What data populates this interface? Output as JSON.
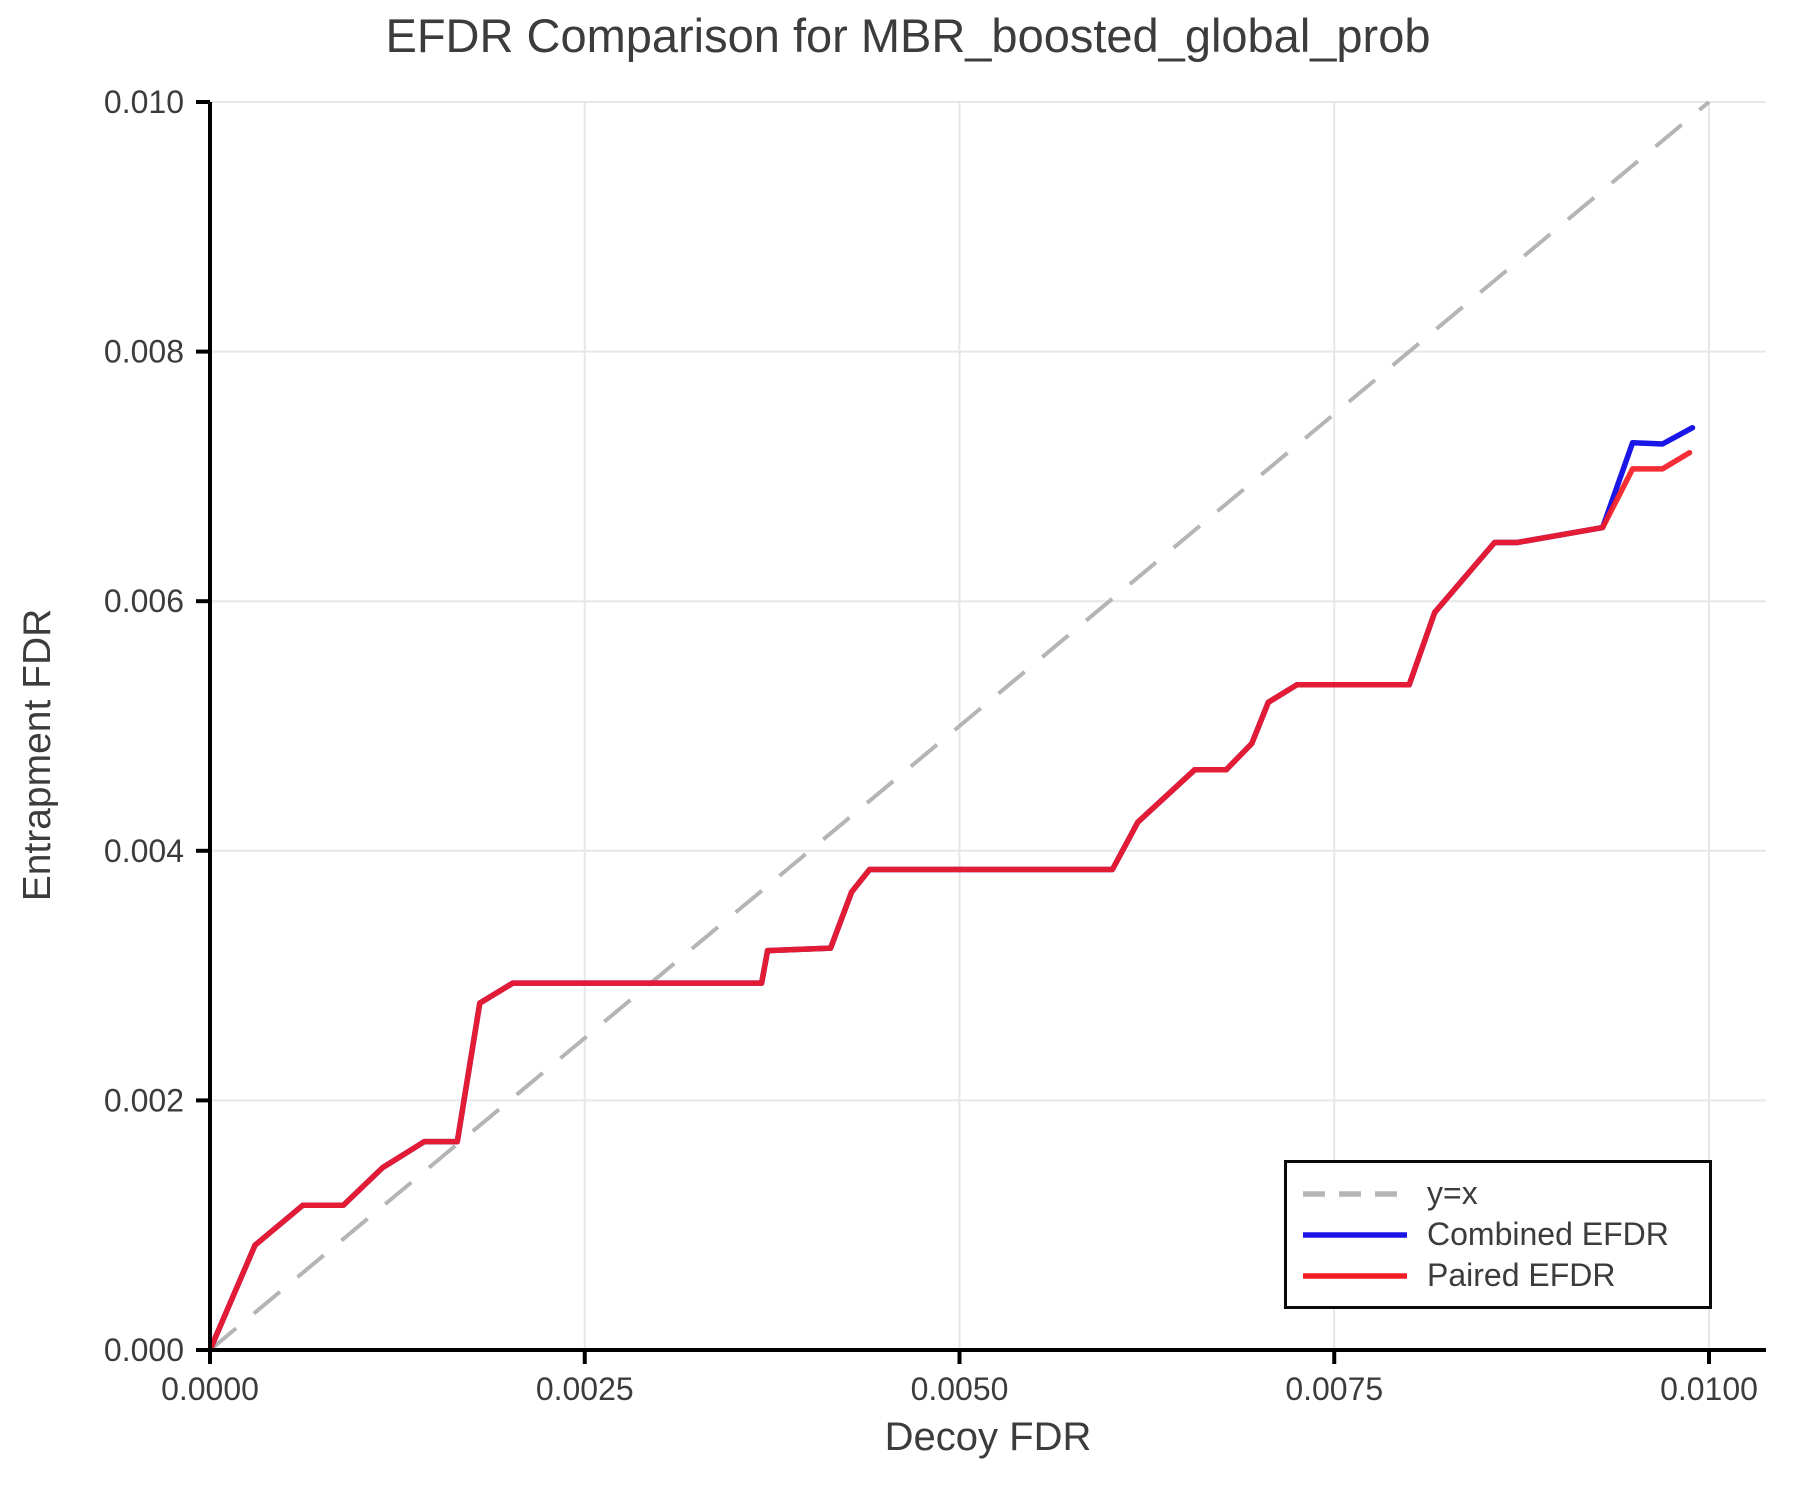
{
  "colors": {
    "background": "#ffffff",
    "grid": "#e7e7e7",
    "spine": "#000000",
    "text": "#3c3c3c",
    "reference": "#b5b5b5",
    "combined": "#1a16e8",
    "paired": "#f41c24"
  },
  "chart_data": {
    "type": "line",
    "title": "EFDR Comparison for MBR_boosted_global_prob",
    "xlabel": "Decoy FDR",
    "ylabel": "Entrapment FDR",
    "xlim": [
      0.0,
      0.01038
    ],
    "ylim": [
      0.0,
      0.01
    ],
    "grid": true,
    "legend_position": "lower right",
    "x_ticks": {
      "values": [
        0.0,
        0.0025,
        0.005,
        0.0075,
        0.01
      ],
      "labels": [
        "0.0000",
        "0.0025",
        "0.0050",
        "0.0075",
        "0.0100"
      ]
    },
    "y_ticks": {
      "values": [
        0.0,
        0.002,
        0.004,
        0.006,
        0.008,
        0.01
      ],
      "labels": [
        "0.000",
        "0.002",
        "0.004",
        "0.006",
        "0.008",
        "0.010"
      ]
    },
    "reference_line": {
      "name": "y=x",
      "style": "dashed",
      "points": [
        [
          0.0,
          0.0
        ],
        [
          0.01,
          0.01
        ]
      ]
    },
    "series": [
      {
        "name": "Combined EFDR",
        "color_key": "combined",
        "points": [
          [
            0.0,
            0.0
          ],
          [
            0.0003,
            0.00084
          ],
          [
            0.00062,
            0.00116
          ],
          [
            0.00089,
            0.00116
          ],
          [
            0.00115,
            0.00146
          ],
          [
            0.00143,
            0.00167
          ],
          [
            0.00165,
            0.00167
          ],
          [
            0.0018,
            0.00278
          ],
          [
            0.00202,
            0.00294
          ],
          [
            0.00368,
            0.00294
          ],
          [
            0.00372,
            0.0032
          ],
          [
            0.00414,
            0.00322
          ],
          [
            0.00428,
            0.00367
          ],
          [
            0.0044,
            0.00385
          ],
          [
            0.00602,
            0.00385
          ],
          [
            0.00619,
            0.00423
          ],
          [
            0.00657,
            0.00465
          ],
          [
            0.00678,
            0.00465
          ],
          [
            0.00695,
            0.00486
          ],
          [
            0.00706,
            0.00519
          ],
          [
            0.00725,
            0.00533
          ],
          [
            0.008,
            0.00533
          ],
          [
            0.00817,
            0.00591
          ],
          [
            0.00857,
            0.00647
          ],
          [
            0.00872,
            0.00647
          ],
          [
            0.00929,
            0.00659
          ],
          [
            0.00949,
            0.00727
          ],
          [
            0.00969,
            0.00726
          ],
          [
            0.00989,
            0.00739
          ]
        ]
      },
      {
        "name": "Paired EFDR",
        "color_key": "paired",
        "points": [
          [
            0.0,
            0.0
          ],
          [
            0.0003,
            0.00084
          ],
          [
            0.00062,
            0.00116
          ],
          [
            0.00089,
            0.00116
          ],
          [
            0.00115,
            0.00146
          ],
          [
            0.00143,
            0.00167
          ],
          [
            0.00165,
            0.00167
          ],
          [
            0.0018,
            0.00278
          ],
          [
            0.00202,
            0.00294
          ],
          [
            0.00368,
            0.00294
          ],
          [
            0.00372,
            0.0032
          ],
          [
            0.00414,
            0.00322
          ],
          [
            0.00428,
            0.00367
          ],
          [
            0.0044,
            0.00385
          ],
          [
            0.00602,
            0.00385
          ],
          [
            0.00619,
            0.00423
          ],
          [
            0.00657,
            0.00465
          ],
          [
            0.00678,
            0.00465
          ],
          [
            0.00695,
            0.00486
          ],
          [
            0.00706,
            0.00519
          ],
          [
            0.00725,
            0.00533
          ],
          [
            0.008,
            0.00533
          ],
          [
            0.00817,
            0.00591
          ],
          [
            0.00857,
            0.00647
          ],
          [
            0.00872,
            0.00647
          ],
          [
            0.00929,
            0.00659
          ],
          [
            0.00949,
            0.00706
          ],
          [
            0.00969,
            0.00706
          ],
          [
            0.00987,
            0.00719
          ]
        ]
      }
    ]
  },
  "legend": {
    "items": [
      {
        "label": "y=x",
        "color_key": "reference",
        "dashed": true
      },
      {
        "label": "Combined EFDR",
        "color_key": "combined",
        "dashed": false
      },
      {
        "label": "Paired EFDR",
        "color_key": "paired",
        "dashed": false
      }
    ]
  }
}
